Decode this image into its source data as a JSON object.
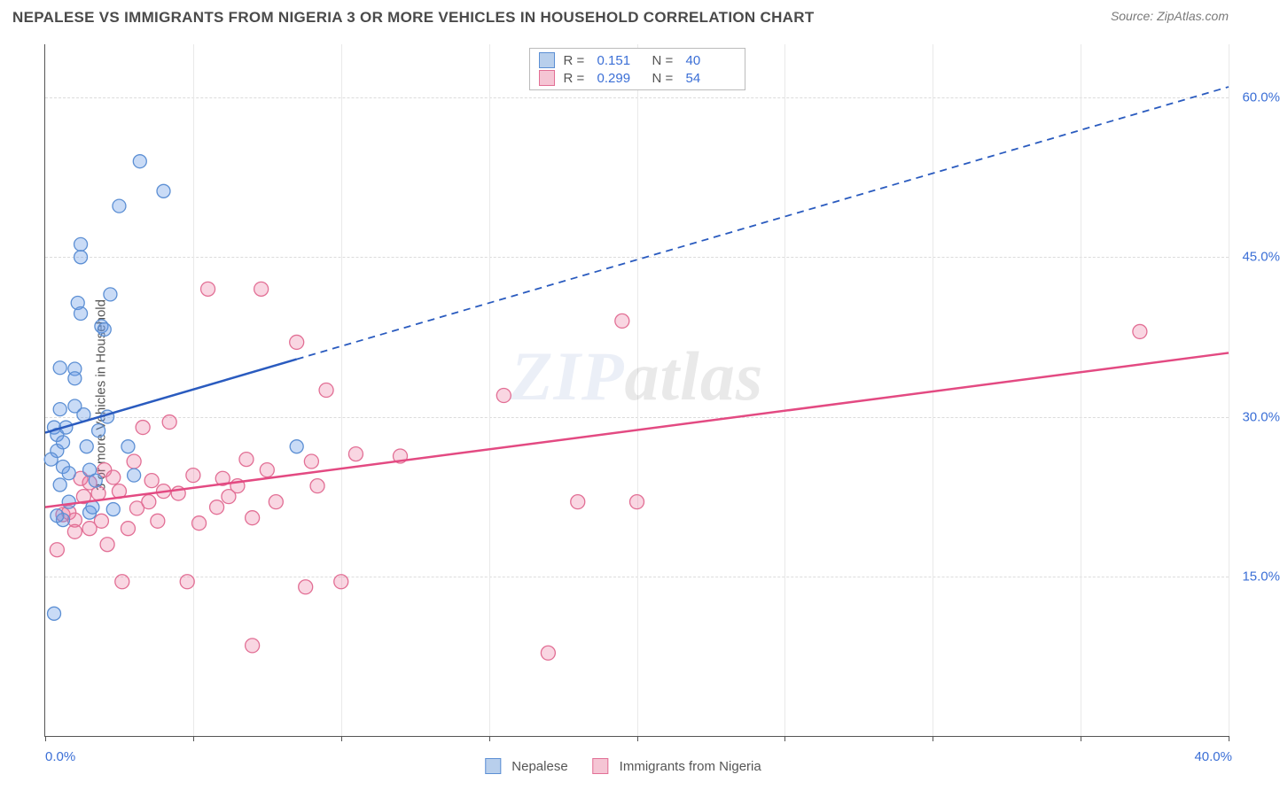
{
  "title": "NEPALESE VS IMMIGRANTS FROM NIGERIA 3 OR MORE VEHICLES IN HOUSEHOLD CORRELATION CHART",
  "source": "Source: ZipAtlas.com",
  "ylabel": "3 or more Vehicles in Household",
  "watermark_a": "ZIP",
  "watermark_b": "atlas",
  "chart": {
    "type": "scatter-with-regression",
    "xlim": [
      0,
      40
    ],
    "ylim": [
      0,
      65
    ],
    "xticks": [
      0,
      5,
      10,
      15,
      20,
      25,
      30,
      35,
      40
    ],
    "xtick_labels": {
      "0": "0.0%",
      "40": "40.0%"
    },
    "yticks": [
      15,
      30,
      45,
      60
    ],
    "ytick_labels": {
      "15": "15.0%",
      "30": "30.0%",
      "45": "45.0%",
      "60": "60.0%"
    },
    "grid_color": "#e2e2e2",
    "series": [
      {
        "name": "Nepalese",
        "color_fill": "rgba(99,151,230,0.35)",
        "color_stroke": "#5c8fd4",
        "swatch_fill": "#b8cfec",
        "swatch_border": "#5c8fd4",
        "r_label": "R =",
        "r_value": "0.151",
        "n_label": "N =",
        "n_value": "40",
        "trend": {
          "x1": 0,
          "y1": 28.5,
          "x2": 40,
          "y2": 61.0,
          "solid_until_x": 8.5
        },
        "marker_r": 7.5,
        "points": [
          [
            0.3,
            29.0
          ],
          [
            0.4,
            28.3
          ],
          [
            0.4,
            26.8
          ],
          [
            0.5,
            30.7
          ],
          [
            0.6,
            25.3
          ],
          [
            0.6,
            27.6
          ],
          [
            0.8,
            22.0
          ],
          [
            0.8,
            24.7
          ],
          [
            1.0,
            34.5
          ],
          [
            1.0,
            33.6
          ],
          [
            1.1,
            40.7
          ],
          [
            1.2,
            39.7
          ],
          [
            1.2,
            46.2
          ],
          [
            1.2,
            45.0
          ],
          [
            1.4,
            27.2
          ],
          [
            1.5,
            25.0
          ],
          [
            1.5,
            21.0
          ],
          [
            1.6,
            21.5
          ],
          [
            1.7,
            24.0
          ],
          [
            1.8,
            28.7
          ],
          [
            1.9,
            38.5
          ],
          [
            2.0,
            38.2
          ],
          [
            2.1,
            30.0
          ],
          [
            2.2,
            41.5
          ],
          [
            2.3,
            21.3
          ],
          [
            2.5,
            49.8
          ],
          [
            0.6,
            20.3
          ],
          [
            0.5,
            23.6
          ],
          [
            2.8,
            27.2
          ],
          [
            3.0,
            24.5
          ],
          [
            3.2,
            54.0
          ],
          [
            4.0,
            51.2
          ],
          [
            8.5,
            27.2
          ],
          [
            0.3,
            11.5
          ],
          [
            0.5,
            34.6
          ],
          [
            0.2,
            26.0
          ],
          [
            0.7,
            29.0
          ],
          [
            1.0,
            31.0
          ],
          [
            0.4,
            20.7
          ],
          [
            1.3,
            30.2
          ]
        ]
      },
      {
        "name": "Immigrants from Nigeria",
        "color_fill": "rgba(236,120,160,0.30)",
        "color_stroke": "#e26f95",
        "swatch_fill": "#f5c5d4",
        "swatch_border": "#e26f95",
        "r_label": "R =",
        "r_value": "0.299",
        "n_label": "N =",
        "n_value": "54",
        "trend": {
          "x1": 0,
          "y1": 21.5,
          "x2": 40,
          "y2": 36.0,
          "solid_until_x": 40
        },
        "marker_r": 8,
        "points": [
          [
            0.4,
            17.5
          ],
          [
            0.6,
            20.8
          ],
          [
            0.8,
            21.0
          ],
          [
            1.0,
            20.3
          ],
          [
            1.0,
            19.2
          ],
          [
            1.2,
            24.2
          ],
          [
            1.3,
            22.5
          ],
          [
            1.5,
            23.8
          ],
          [
            1.5,
            19.5
          ],
          [
            1.8,
            22.8
          ],
          [
            1.9,
            20.2
          ],
          [
            2.0,
            25.0
          ],
          [
            2.1,
            18.0
          ],
          [
            2.3,
            24.3
          ],
          [
            2.5,
            23.0
          ],
          [
            2.6,
            14.5
          ],
          [
            2.8,
            19.5
          ],
          [
            3.0,
            25.8
          ],
          [
            3.1,
            21.4
          ],
          [
            3.3,
            29.0
          ],
          [
            3.5,
            22.0
          ],
          [
            3.6,
            24.0
          ],
          [
            3.8,
            20.2
          ],
          [
            4.0,
            23.0
          ],
          [
            4.2,
            29.5
          ],
          [
            4.5,
            22.8
          ],
          [
            4.8,
            14.5
          ],
          [
            5.0,
            24.5
          ],
          [
            5.2,
            20.0
          ],
          [
            5.5,
            42.0
          ],
          [
            5.8,
            21.5
          ],
          [
            6.0,
            24.2
          ],
          [
            6.2,
            22.5
          ],
          [
            6.5,
            23.5
          ],
          [
            6.8,
            26.0
          ],
          [
            7.0,
            20.5
          ],
          [
            7.3,
            42.0
          ],
          [
            7.5,
            25.0
          ],
          [
            7.8,
            22.0
          ],
          [
            8.5,
            37.0
          ],
          [
            8.8,
            14.0
          ],
          [
            9.0,
            25.8
          ],
          [
            9.2,
            23.5
          ],
          [
            9.5,
            32.5
          ],
          [
            10.0,
            14.5
          ],
          [
            10.5,
            26.5
          ],
          [
            12.0,
            26.3
          ],
          [
            15.5,
            32.0
          ],
          [
            17.0,
            7.8
          ],
          [
            18.0,
            22.0
          ],
          [
            19.5,
            39.0
          ],
          [
            20.0,
            22.0
          ],
          [
            37.0,
            38.0
          ],
          [
            7.0,
            8.5
          ]
        ]
      }
    ]
  }
}
